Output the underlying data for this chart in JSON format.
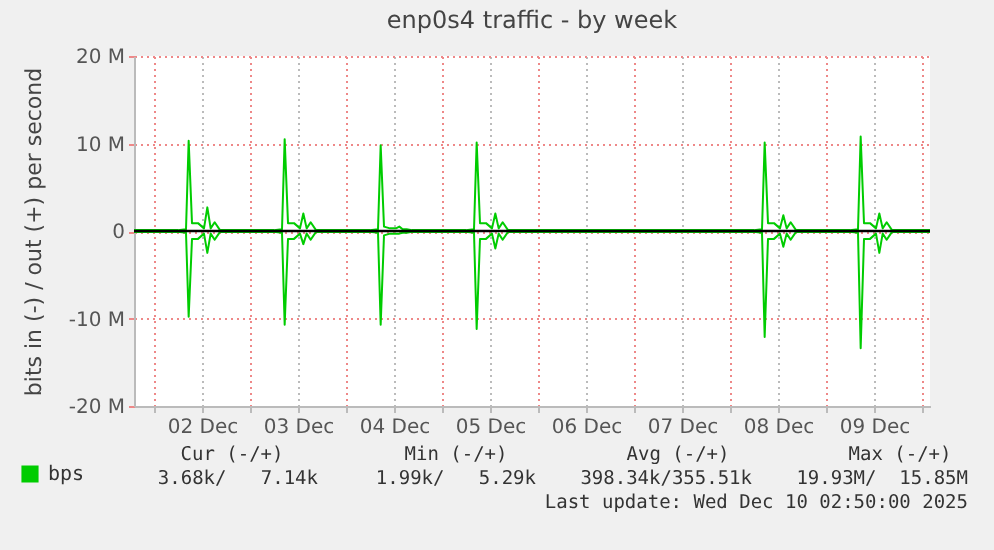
{
  "chart_data": {
    "type": "line",
    "title": "enp0s4 traffic - by week",
    "ylabel": "bits in (-) / out (+) per second",
    "x": [
      "2025-12-01T19:00",
      "2025-12-02T06:00",
      "2025-12-02T08:00",
      "2025-12-02T08:40",
      "2025-12-02T09:30",
      "2025-12-02T11:00",
      "2025-12-02T12:30",
      "2025-12-02T13:20",
      "2025-12-02T14:10",
      "2025-12-02T15:10",
      "2025-12-02T16:30",
      "2025-12-03T06:00",
      "2025-12-03T08:00",
      "2025-12-03T08:40",
      "2025-12-03T09:30",
      "2025-12-03T11:00",
      "2025-12-03T12:30",
      "2025-12-03T13:20",
      "2025-12-03T14:10",
      "2025-12-03T15:10",
      "2025-12-03T16:30",
      "2025-12-04T06:00",
      "2025-12-04T08:00",
      "2025-12-04T08:40",
      "2025-12-04T09:30",
      "2025-12-04T11:00",
      "2025-12-04T12:30",
      "2025-12-04T13:20",
      "2025-12-04T14:10",
      "2025-12-04T15:10",
      "2025-12-04T16:30",
      "2025-12-05T06:00",
      "2025-12-05T08:00",
      "2025-12-05T08:40",
      "2025-12-05T09:30",
      "2025-12-05T11:00",
      "2025-12-05T12:30",
      "2025-12-05T13:20",
      "2025-12-05T14:10",
      "2025-12-05T15:10",
      "2025-12-05T16:30",
      "2025-12-08T06:00",
      "2025-12-08T08:00",
      "2025-12-08T08:40",
      "2025-12-08T09:30",
      "2025-12-08T11:00",
      "2025-12-08T12:30",
      "2025-12-08T13:20",
      "2025-12-08T14:10",
      "2025-12-08T15:10",
      "2025-12-08T16:30",
      "2025-12-09T06:00",
      "2025-12-09T08:00",
      "2025-12-09T08:40",
      "2025-12-09T09:30",
      "2025-12-09T11:00",
      "2025-12-09T12:30",
      "2025-12-09T13:20",
      "2025-12-09T14:10",
      "2025-12-09T15:10",
      "2025-12-09T16:30",
      "2025-12-10T02:00"
    ],
    "series": [
      {
        "name": "bps",
        "color": "#00cc00",
        "values": [
          0.1,
          0.1,
          0.2,
          10.3,
          0.9,
          0.9,
          0.3,
          2.7,
          0.3,
          1.0,
          0.1,
          0.1,
          0.2,
          10.5,
          0.9,
          0.9,
          0.3,
          2.0,
          0.3,
          1.0,
          0.1,
          0.1,
          0.2,
          9.8,
          0.5,
          0.3,
          0.3,
          0.5,
          0.2,
          0.2,
          0.1,
          0.1,
          0.2,
          10.1,
          0.9,
          0.9,
          0.3,
          2.0,
          0.3,
          1.0,
          0.1,
          0.1,
          0.2,
          10.1,
          0.9,
          0.9,
          0.3,
          1.8,
          0.3,
          1.0,
          0.1,
          0.1,
          0.2,
          10.8,
          0.9,
          0.9,
          0.3,
          2.0,
          0.3,
          1.0,
          0.1,
          0.1
        ]
      },
      {
        "color": "#00cc00",
        "values": [
          -0.1,
          -0.1,
          -0.2,
          -9.8,
          -0.9,
          -0.9,
          -0.3,
          -2.5,
          -0.3,
          -1.0,
          -0.1,
          -0.1,
          -0.2,
          -10.7,
          -0.9,
          -0.9,
          -0.3,
          -1.5,
          -0.3,
          -1.0,
          -0.1,
          -0.1,
          -0.2,
          -10.7,
          -0.5,
          -0.3,
          -0.3,
          -0.3,
          -0.2,
          -0.2,
          -0.1,
          -0.1,
          -0.2,
          -11.2,
          -0.9,
          -0.9,
          -0.3,
          -2.0,
          -0.3,
          -1.0,
          -0.1,
          -0.1,
          -0.2,
          -12.1,
          -0.9,
          -0.9,
          -0.3,
          -1.8,
          -0.3,
          -1.0,
          -0.1,
          -0.1,
          -0.2,
          -13.4,
          -0.9,
          -0.9,
          -0.3,
          -2.5,
          -0.3,
          -1.0,
          -0.1,
          -0.1
        ]
      }
    ],
    "xlim": [
      "2025-12-01T19:00",
      "2025-12-10T02:00"
    ],
    "xticks": [
      {
        "value": "2025-12-02T00:00",
        "label": null
      },
      {
        "value": "2025-12-02T12:00",
        "label": "02 Dec"
      },
      {
        "value": "2025-12-03T00:00",
        "label": null
      },
      {
        "value": "2025-12-03T12:00",
        "label": "03 Dec"
      },
      {
        "value": "2025-12-04T00:00",
        "label": null
      },
      {
        "value": "2025-12-04T12:00",
        "label": "04 Dec"
      },
      {
        "value": "2025-12-05T00:00",
        "label": null
      },
      {
        "value": "2025-12-05T12:00",
        "label": "05 Dec"
      },
      {
        "value": "2025-12-06T00:00",
        "label": null
      },
      {
        "value": "2025-12-06T12:00",
        "label": "06 Dec"
      },
      {
        "value": "2025-12-07T00:00",
        "label": null
      },
      {
        "value": "2025-12-07T12:00",
        "label": "07 Dec"
      },
      {
        "value": "2025-12-08T00:00",
        "label": null
      },
      {
        "value": "2025-12-08T12:00",
        "label": "08 Dec"
      },
      {
        "value": "2025-12-09T00:00",
        "label": null
      },
      {
        "value": "2025-12-09T12:00",
        "label": "09 Dec"
      },
      {
        "value": "2025-12-10T00:00",
        "label": null
      }
    ],
    "ylim": [
      -20,
      20
    ],
    "yticks": [
      {
        "value": -20,
        "label": "-20 M"
      },
      {
        "value": -10,
        "label": "-10 M"
      },
      {
        "value": 0,
        "label": "0"
      },
      {
        "value": 10,
        "label": "10 M"
      },
      {
        "value": 20,
        "label": "20 M"
      }
    ],
    "ref_lines": [
      {
        "axis": "y",
        "value": 0,
        "color": "#000000"
      }
    ],
    "grid": true,
    "legend": "bottom left",
    "annotations": [
      "Cur (-/+)",
      "Min (-/+)",
      "Avg (-/+)",
      "Max (-/+)",
      "3.68k/   7.14k",
      "1.99k/   5.29k",
      "398.34k/355.51k",
      "19.93M/  15.85M",
      "Last update: Wed Dec 10 02:50:00 2025"
    ]
  }
}
